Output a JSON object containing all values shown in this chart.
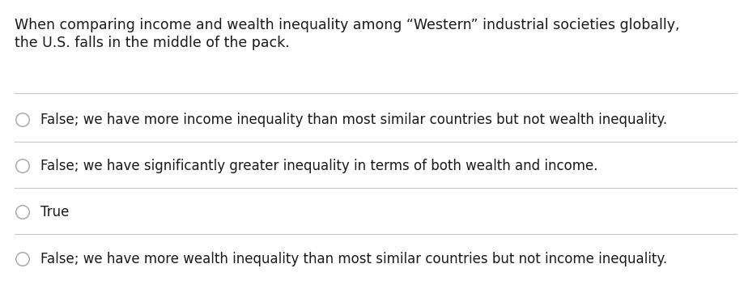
{
  "background_color": "#ffffff",
  "question_line1": "When comparing income and wealth inequality among “Western” industrial societies globally,",
  "question_line2": "the U.S. falls in the middle of the pack.",
  "options": [
    "False; we have more income inequality than most similar countries but not wealth inequality.",
    "False; we have significantly greater inequality in terms of both wealth and income.",
    "True",
    "False; we have more wealth inequality than most similar countries but not income inequality."
  ],
  "question_fontsize": 12.5,
  "option_fontsize": 12.0,
  "text_color": "#1a1a1a",
  "line_color": "#c8c8c8",
  "circle_color": "#aaaaaa",
  "fig_width": 9.19,
  "fig_height": 3.47,
  "dpi": 100
}
